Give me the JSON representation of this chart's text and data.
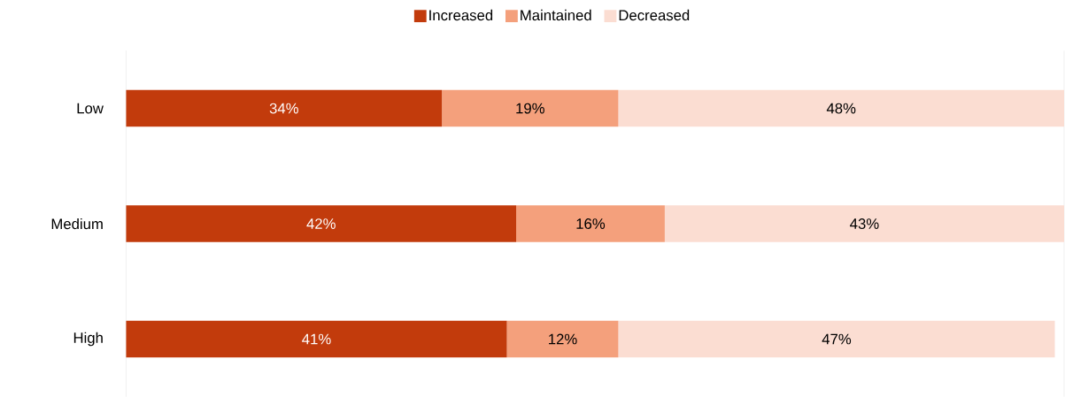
{
  "chart_data": {
    "type": "bar",
    "orientation": "horizontal",
    "stacked": true,
    "categories": [
      "Low",
      "Medium",
      "High"
    ],
    "tick_labels": "y",
    "legend": "top",
    "series": [
      {
        "name": "Increased",
        "color": "#c23b0c",
        "values": [
          34,
          42,
          41
        ],
        "value_labels": [
          "34%",
          "42%",
          "41%"
        ]
      },
      {
        "name": "Maintained",
        "color": "#f4a07c",
        "values": [
          19,
          16,
          12
        ],
        "value_labels": [
          "19%",
          "16%",
          "12%"
        ]
      },
      {
        "name": "Decreased",
        "color": "#fbddd2",
        "values": [
          48,
          43,
          47
        ],
        "value_labels": [
          "48%",
          "43%",
          "47%"
        ]
      }
    ]
  }
}
